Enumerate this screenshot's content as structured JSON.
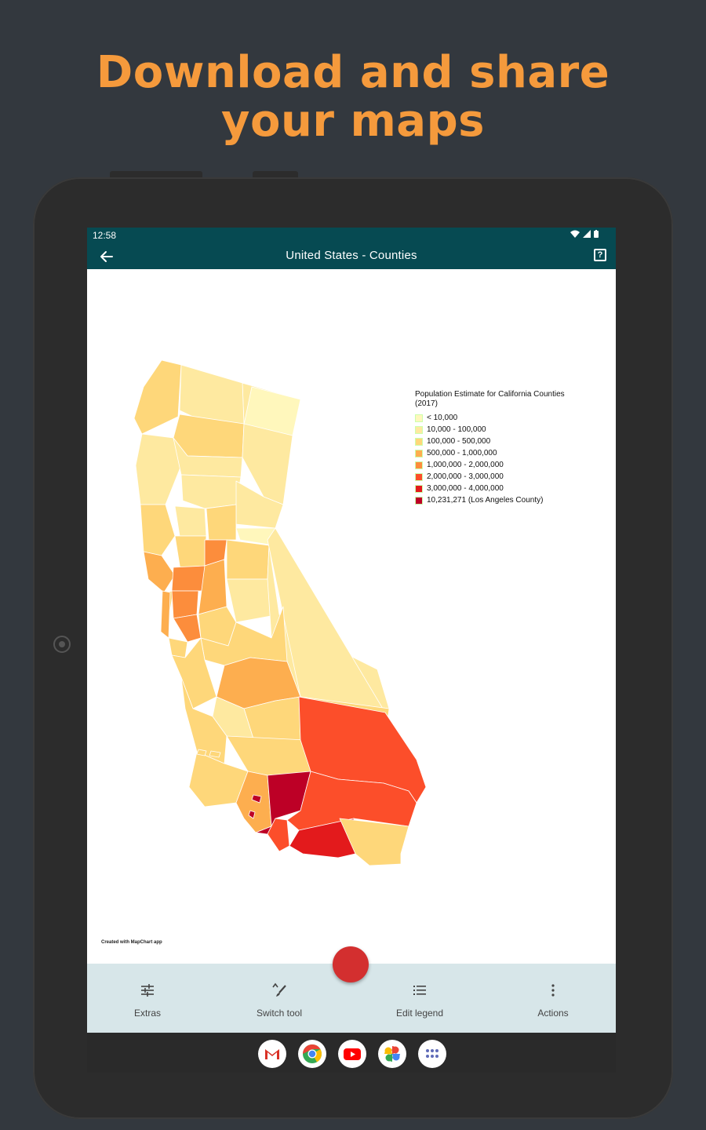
{
  "promo": {
    "headline_line1": "Download and share",
    "headline_line2": "your maps"
  },
  "status_bar": {
    "time": "12:58"
  },
  "app_bar": {
    "title": "United States - Counties",
    "back_icon": "arrow-left-icon",
    "help_icon": "help-box-icon"
  },
  "legend": {
    "title": "Population Estimate for California Counties (2017)",
    "items": [
      {
        "label": "< 10,000",
        "color": "#fff7bc"
      },
      {
        "label": "10,000 - 100,000",
        "color": "#fee9a0"
      },
      {
        "label": "100,000 - 500,000",
        "color": "#fed77a"
      },
      {
        "label": "500,000 - 1,000,000",
        "color": "#fdae4f"
      },
      {
        "label": "1,000,000 - 2,000,000",
        "color": "#fc8d3c"
      },
      {
        "label": "2,000,000 - 3,000,000",
        "color": "#fc4e2a"
      },
      {
        "label": "3,000,000 - 4,000,000",
        "color": "#e31a1c"
      },
      {
        "label": "10,231,271 (Los Angeles County)",
        "color": "#bd0026"
      }
    ]
  },
  "credit": "Created with MapChart app",
  "toolbar": {
    "extras": "Extras",
    "switch_tool": "Switch tool",
    "edit_legend": "Edit legend",
    "actions": "Actions"
  },
  "fab_color": "#d32f2f",
  "dock_apps": [
    "gmail-icon",
    "chrome-icon",
    "youtube-icon",
    "photos-icon",
    "app-drawer-icon"
  ]
}
